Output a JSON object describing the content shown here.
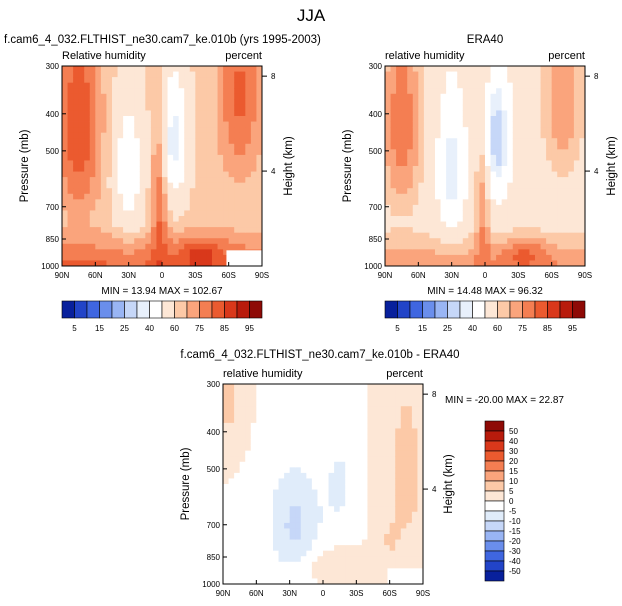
{
  "page_title": "JJA",
  "colors": {
    "blue_deep": "#08209c",
    "blue_light": "#e0ecfa",
    "neutral": "#ffffff",
    "red_light": "#fde7d6",
    "red_deep": "#8e0a06"
  },
  "chart_data": [
    {
      "id": "model",
      "type": "contour",
      "title": "f.cam6_4_032.FLTHIST_ne30.cam7_ke.010b (yrs 1995-2003)",
      "left_label": "Relative humidity",
      "right_label": "percent",
      "ylabel": "Pressure (mb)",
      "right_axis_label": "Height (km)",
      "x_ticks": [
        "90N",
        "60N",
        "30N",
        "0",
        "30S",
        "60S",
        "90S"
      ],
      "x_range": [
        90,
        -90
      ],
      "y_ticks": [
        300,
        400,
        500,
        700,
        850,
        1000
      ],
      "y_range": [
        300,
        1000
      ],
      "height_ticks": [
        {
          "label": "8",
          "value": 8
        },
        {
          "label": "4",
          "value": 4
        }
      ],
      "stats_text": "MIN = 13.94  MAX = 102.67",
      "min": 13.94,
      "max": 102.67
    },
    {
      "id": "obs",
      "type": "contour",
      "title": "ERA40",
      "left_label": "relative humidity",
      "right_label": "percent",
      "ylabel": "Pressure (mb)",
      "right_axis_label": "Height (km)",
      "x_ticks": [
        "90N",
        "60N",
        "30N",
        "0",
        "30S",
        "60S",
        "90S"
      ],
      "x_range": [
        90,
        -90
      ],
      "y_ticks": [
        300,
        400,
        500,
        700,
        850,
        1000
      ],
      "y_range": [
        300,
        1000
      ],
      "height_ticks": [
        {
          "label": "8",
          "value": 8
        },
        {
          "label": "4",
          "value": 4
        }
      ],
      "stats_text": "MIN = 14.48  MAX = 96.32",
      "min": 14.48,
      "max": 96.32
    },
    {
      "id": "diff",
      "type": "contour",
      "title": "f.cam6_4_032.FLTHIST_ne30.cam7_ke.010b - ERA40",
      "left_label": "relative humidity",
      "right_label": "percent",
      "ylabel": "Pressure (mb)",
      "right_axis_label": "Height (km)",
      "x_ticks": [
        "90N",
        "60N",
        "30N",
        "0",
        "30S",
        "60S",
        "90S"
      ],
      "x_range": [
        90,
        -90
      ],
      "y_ticks": [
        300,
        400,
        500,
        700,
        850,
        1000
      ],
      "y_range": [
        300,
        1000
      ],
      "height_ticks": [
        {
          "label": "8",
          "value": 8
        },
        {
          "label": "4",
          "value": 4
        }
      ],
      "stats_text": "MIN = -20.00  MAX = 22.87",
      "min": -20.0,
      "max": 22.87
    }
  ],
  "colorbar_top": {
    "labels": [
      "5",
      "15",
      "25",
      "40",
      "60",
      "75",
      "85",
      "95"
    ],
    "colors": [
      "#08209c",
      "#2244c8",
      "#3f66e0",
      "#6a8eec",
      "#99b5f4",
      "#c6d7f8",
      "#e8f0fb",
      "#ffffff",
      "#fde7d6",
      "#fcc9a7",
      "#faa47c",
      "#f47e52",
      "#eb5a2f",
      "#d9381b",
      "#b81b0c",
      "#8e0a06"
    ]
  },
  "colorbar_diff": {
    "labels": [
      "50",
      "40",
      "30",
      "20",
      "15",
      "10",
      "5",
      "0",
      "-5",
      "-10",
      "-15",
      "-20",
      "-30",
      "-40",
      "-50"
    ],
    "colors": [
      "#8e0a06",
      "#b81b0c",
      "#d9381b",
      "#eb5a2f",
      "#f47e52",
      "#faa47c",
      "#fcc9a7",
      "#fde7d6",
      "#ffffff",
      "#e0ecfa",
      "#c6d7f8",
      "#99b5f4",
      "#6a8eec",
      "#3f66e0",
      "#2244c8",
      "#08209c"
    ]
  }
}
